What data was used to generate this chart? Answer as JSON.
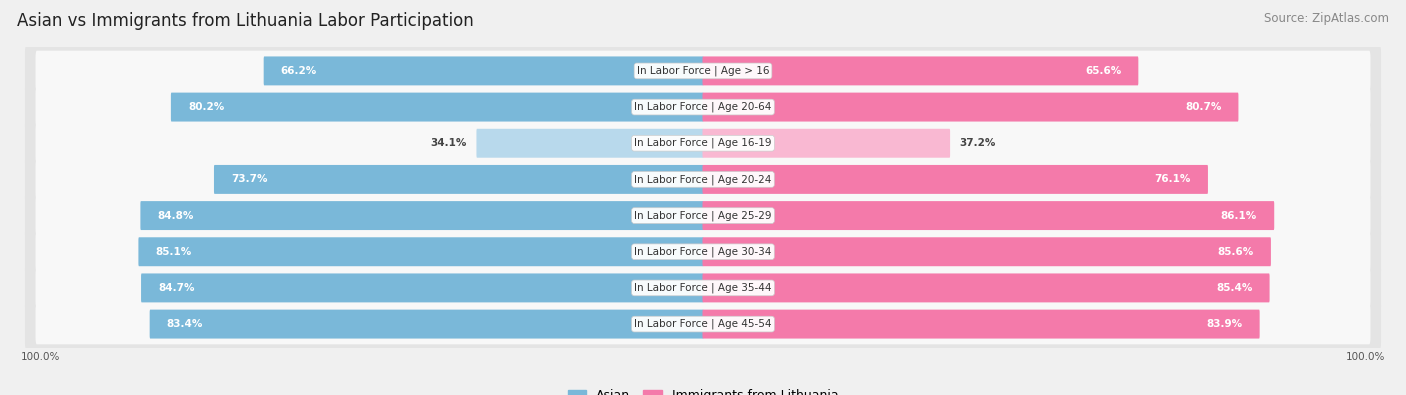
{
  "title": "Asian vs Immigrants from Lithuania Labor Participation",
  "source": "Source: ZipAtlas.com",
  "categories": [
    "In Labor Force | Age > 16",
    "In Labor Force | Age 20-64",
    "In Labor Force | Age 16-19",
    "In Labor Force | Age 20-24",
    "In Labor Force | Age 25-29",
    "In Labor Force | Age 30-34",
    "In Labor Force | Age 35-44",
    "In Labor Force | Age 45-54"
  ],
  "asian_values": [
    66.2,
    80.2,
    34.1,
    73.7,
    84.8,
    85.1,
    84.7,
    83.4
  ],
  "lithuania_values": [
    65.6,
    80.7,
    37.2,
    76.1,
    86.1,
    85.6,
    85.4,
    83.9
  ],
  "asian_color": "#7ab8d9",
  "asian_color_light": "#b8d9ec",
  "lithuania_color": "#f47aaa",
  "lithuania_color_light": "#f9b8d2",
  "max_value": 100.0,
  "background_color": "#f0f0f0",
  "row_bg_color": "#e8e8e8",
  "bar_inner_bg": "#ffffff",
  "title_fontsize": 12,
  "source_fontsize": 8.5,
  "label_fontsize": 7.5,
  "value_fontsize": 7.5,
  "legend_fontsize": 9
}
